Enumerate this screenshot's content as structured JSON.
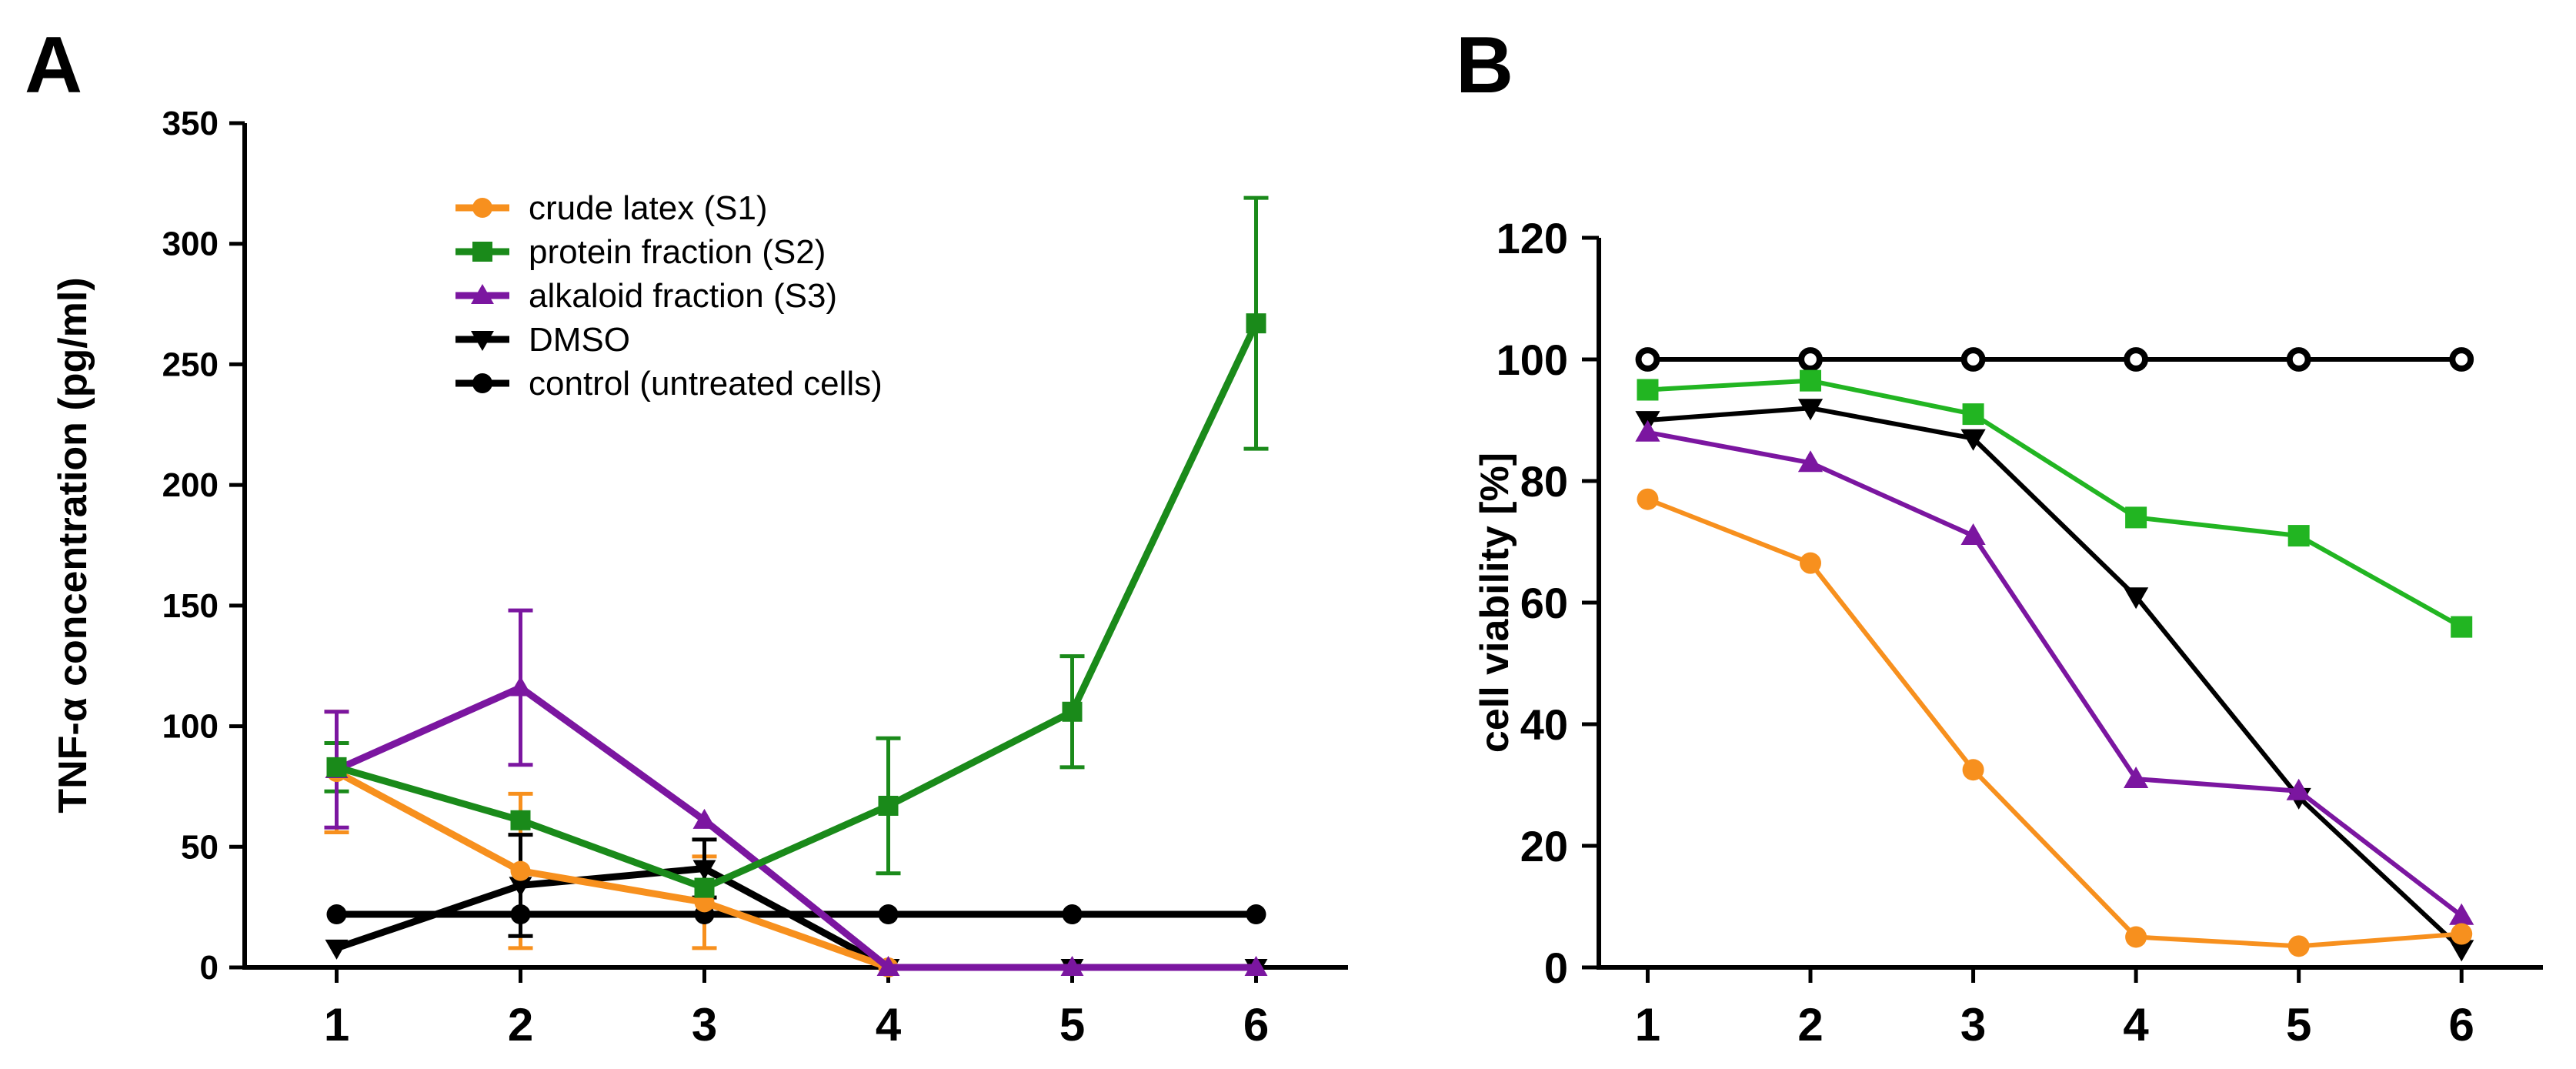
{
  "chart_data": [
    {
      "panel": "A",
      "type": "line",
      "xlabel": "",
      "ylabel": "TNF-α concentration (pg/ml)",
      "x": [
        1,
        2,
        3,
        4,
        5,
        6
      ],
      "xlim": [
        0.5,
        6.5
      ],
      "ylim": [
        0,
        350
      ],
      "yticks": [
        0,
        50,
        100,
        150,
        200,
        250,
        300,
        350
      ],
      "grid": false,
      "legend_position": "top-center",
      "series": [
        {
          "name": "crude latex (S1)",
          "color": "#f7901e",
          "marker": "circle",
          "values": [
            81,
            40,
            27,
            0,
            null,
            null
          ],
          "errors": [
            25,
            32,
            19,
            0,
            null,
            null
          ]
        },
        {
          "name": "protein fraction (S2)",
          "color": "#1a8a1a",
          "marker": "square",
          "values": [
            83,
            61,
            33,
            67,
            106,
            267
          ],
          "errors": [
            10,
            0,
            0,
            28,
            23,
            52
          ]
        },
        {
          "name": "alkaloid fraction (S3)",
          "color": "#7b16a0",
          "marker": "triangle-up",
          "values": [
            82,
            116,
            61,
            0,
            0,
            0
          ],
          "errors": [
            24,
            32,
            0,
            0,
            0,
            0
          ]
        },
        {
          "name": "DMSO",
          "color": "#000000",
          "marker": "triangle-down",
          "values": [
            8,
            34,
            41,
            0,
            0,
            0
          ],
          "errors": [
            0,
            21,
            12,
            0,
            0,
            0
          ]
        },
        {
          "name": "control (untreated cells)",
          "color": "#000000",
          "marker": "circle",
          "values": [
            22,
            22,
            22,
            22,
            22,
            22
          ],
          "errors": [
            0,
            0,
            0,
            0,
            0,
            0
          ]
        }
      ]
    },
    {
      "panel": "B",
      "type": "line",
      "xlabel": "",
      "ylabel": "cell viability [%]",
      "x": [
        1,
        2,
        3,
        4,
        5,
        6
      ],
      "xlim": [
        0.7,
        6.5
      ],
      "ylim": [
        0,
        120
      ],
      "yticks": [
        0,
        20,
        40,
        60,
        80,
        100,
        120
      ],
      "grid": false,
      "series": [
        {
          "name": "control",
          "color": "#000000",
          "marker": "open-circle",
          "values": [
            100,
            100,
            100,
            100,
            100,
            100
          ]
        },
        {
          "name": "protein fraction (S2)",
          "color": "#22b522",
          "marker": "square",
          "values": [
            95,
            96.5,
            91,
            74,
            71,
            56
          ]
        },
        {
          "name": "DMSO",
          "color": "#000000",
          "marker": "triangle-down",
          "values": [
            90,
            92,
            87,
            61,
            28,
            3
          ]
        },
        {
          "name": "alkaloid fraction (S3)",
          "color": "#7b16a0",
          "marker": "triangle-up",
          "values": [
            88,
            83,
            71,
            31,
            29,
            8.5
          ]
        },
        {
          "name": "crude latex (S1)",
          "color": "#f7901e",
          "marker": "circle",
          "values": [
            77,
            66.5,
            32.5,
            5,
            3.5,
            5.5
          ]
        }
      ]
    }
  ]
}
